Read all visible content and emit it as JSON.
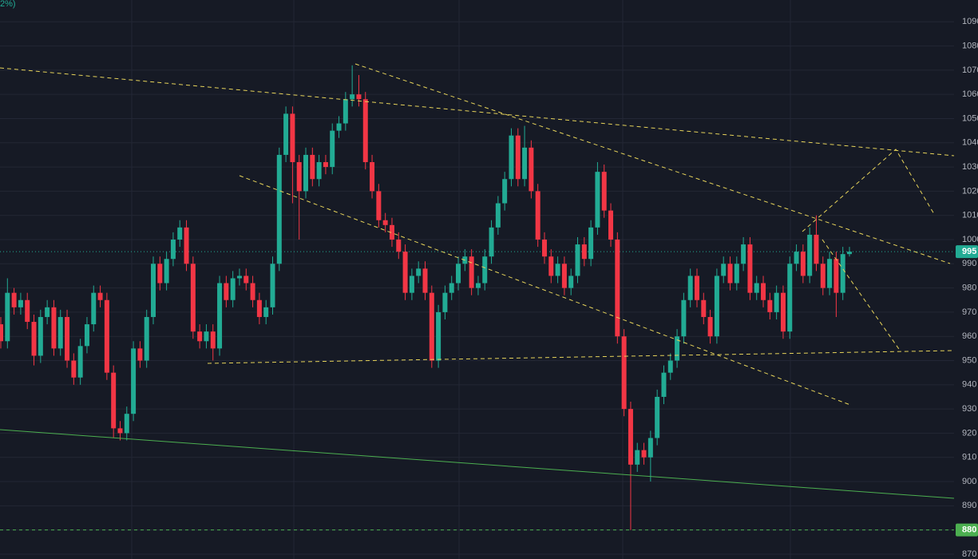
{
  "chart_data": {
    "type": "candlestick",
    "overlay_text": "2%)",
    "colors": {
      "up": "#22ab94",
      "down": "#f23645"
    },
    "ylim": [
      868,
      1099
    ],
    "yticks": [
      870,
      880,
      890,
      900,
      910,
      920,
      930,
      940,
      950,
      960,
      970,
      980,
      990,
      1000,
      1010,
      1020,
      1030,
      1040,
      1050,
      1060,
      1070,
      1080,
      1090
    ],
    "grid": true,
    "price_lines": [
      {
        "value": 995,
        "color": "#22ab94"
      },
      {
        "value": 880,
        "color": "#4caf50"
      }
    ],
    "open": [
      965,
      958,
      978,
      972,
      975,
      966,
      952,
      968,
      972,
      955,
      968,
      950,
      943,
      956,
      965,
      978,
      975,
      945,
      922,
      920,
      928,
      955,
      950,
      968,
      990,
      982,
      992,
      1000,
      1005,
      990,
      962,
      958,
      962,
      955,
      982,
      975,
      984,
      985,
      982,
      975,
      968,
      972,
      990,
      1035,
      1052,
      1032,
      1020,
      1035,
      1025,
      1032,
      1030,
      1045,
      1048,
      1058,
      1060,
      1058,
      1032,
      1020,
      1008,
      1006,
      1000,
      995,
      978,
      985,
      988,
      978,
      950,
      970,
      978,
      982,
      990,
      993,
      980,
      982,
      993,
      1005,
      1015,
      1025,
      1043,
      1025,
      1038,
      1020,
      1000,
      993,
      985,
      990,
      980,
      985,
      998,
      992,
      1005,
      1028,
      1012,
      1000,
      960,
      930,
      907,
      913,
      910,
      918,
      935,
      945,
      950,
      960,
      975,
      985,
      975,
      968,
      960,
      985,
      990,
      982,
      990,
      998,
      978,
      982,
      975,
      970,
      978,
      962,
      990,
      995,
      985,
      1002,
      990,
      980,
      992,
      978,
      994
    ],
    "high": [
      968,
      984,
      980,
      978,
      978,
      969,
      971,
      975,
      975,
      971,
      971,
      953,
      959,
      968,
      981,
      981,
      978,
      948,
      925,
      931,
      958,
      958,
      971,
      993,
      993,
      995,
      1003,
      1008,
      1008,
      993,
      965,
      965,
      965,
      985,
      985,
      987,
      988,
      988,
      985,
      978,
      975,
      993,
      1038,
      1055,
      1055,
      1035,
      1038,
      1038,
      1035,
      1035,
      1048,
      1051,
      1061,
      1072,
      1068,
      1061,
      1035,
      1023,
      1011,
      1009,
      1003,
      998,
      988,
      991,
      991,
      981,
      973,
      981,
      985,
      993,
      996,
      996,
      985,
      996,
      1008,
      1018,
      1028,
      1046,
      1046,
      1047,
      1041,
      1023,
      1003,
      996,
      993,
      993,
      988,
      1001,
      1001,
      1008,
      1032,
      1031,
      1015,
      1003,
      963,
      933,
      916,
      916,
      921,
      938,
      948,
      953,
      963,
      978,
      988,
      988,
      978,
      971,
      988,
      993,
      993,
      993,
      1001,
      1001,
      985,
      985,
      978,
      981,
      981,
      993,
      998,
      998,
      1005,
      1010,
      993,
      995,
      995,
      997,
      997
    ],
    "low": [
      955,
      955,
      969,
      969,
      963,
      948,
      949,
      965,
      952,
      952,
      947,
      940,
      940,
      953,
      962,
      972,
      942,
      918,
      917,
      917,
      925,
      947,
      947,
      965,
      979,
      979,
      989,
      997,
      987,
      959,
      955,
      955,
      950,
      952,
      972,
      972,
      981,
      979,
      972,
      965,
      965,
      969,
      987,
      1032,
      1015,
      1000,
      1017,
      1022,
      1022,
      1027,
      1027,
      1042,
      1045,
      1055,
      1055,
      1029,
      1017,
      1005,
      1003,
      997,
      992,
      975,
      975,
      982,
      975,
      947,
      947,
      967,
      975,
      979,
      987,
      977,
      977,
      979,
      990,
      1002,
      1012,
      1022,
      1022,
      1022,
      1017,
      997,
      990,
      982,
      982,
      977,
      977,
      982,
      989,
      989,
      1002,
      1009,
      997,
      957,
      927,
      880,
      904,
      907,
      900,
      915,
      932,
      942,
      947,
      957,
      972,
      972,
      965,
      957,
      957,
      982,
      979,
      979,
      987,
      975,
      975,
      972,
      967,
      967,
      959,
      959,
      987,
      982,
      982,
      987,
      977,
      977,
      968,
      975,
      993
    ],
    "close": [
      958,
      978,
      972,
      975,
      966,
      952,
      968,
      972,
      955,
      968,
      950,
      943,
      956,
      965,
      978,
      975,
      945,
      922,
      920,
      928,
      955,
      950,
      968,
      990,
      982,
      992,
      1000,
      1005,
      990,
      962,
      958,
      962,
      955,
      982,
      975,
      984,
      985,
      982,
      975,
      968,
      972,
      990,
      1035,
      1052,
      1032,
      1020,
      1035,
      1025,
      1032,
      1030,
      1045,
      1048,
      1058,
      1060,
      1058,
      1032,
      1020,
      1008,
      1006,
      1000,
      995,
      978,
      985,
      988,
      978,
      950,
      970,
      978,
      982,
      990,
      993,
      980,
      982,
      993,
      1005,
      1015,
      1025,
      1043,
      1025,
      1038,
      1020,
      1000,
      993,
      985,
      990,
      980,
      985,
      998,
      992,
      1005,
      1028,
      1012,
      1000,
      960,
      930,
      907,
      913,
      910,
      918,
      935,
      945,
      950,
      960,
      975,
      985,
      975,
      968,
      960,
      985,
      990,
      982,
      990,
      998,
      978,
      982,
      975,
      970,
      978,
      962,
      990,
      995,
      985,
      1002,
      990,
      980,
      992,
      978,
      994,
      995
    ]
  }
}
